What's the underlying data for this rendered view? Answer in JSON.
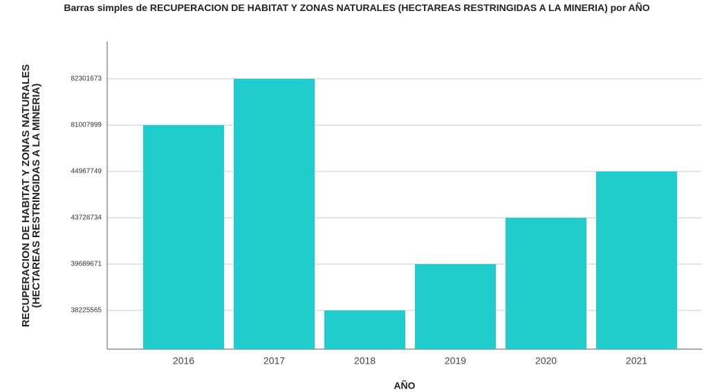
{
  "chart_data": {
    "type": "bar",
    "title": "Barras simples de RECUPERACION DE HABITAT Y ZONAS NATURALES (HECTAREAS RESTRINGIDAS A LA MINERIA) por AÑO",
    "x_label": "AÑO",
    "y_label": "RECUPERACION DE HABITAT Y ZONAS NATURALES (HECTAREAS RESTRINGIDAS A LA MINERIA)",
    "categories": [
      "2016",
      "2017",
      "2018",
      "2019",
      "2020",
      "2021"
    ],
    "values": [
      81007999,
      82301673,
      38225565,
      39689671,
      43728734,
      44967749
    ],
    "color": "#21cccc",
    "y_scale": "ordinal",
    "yticks": [
      38225565,
      39689671,
      43728734,
      44967749,
      81007999,
      82301673
    ],
    "grid": true
  }
}
